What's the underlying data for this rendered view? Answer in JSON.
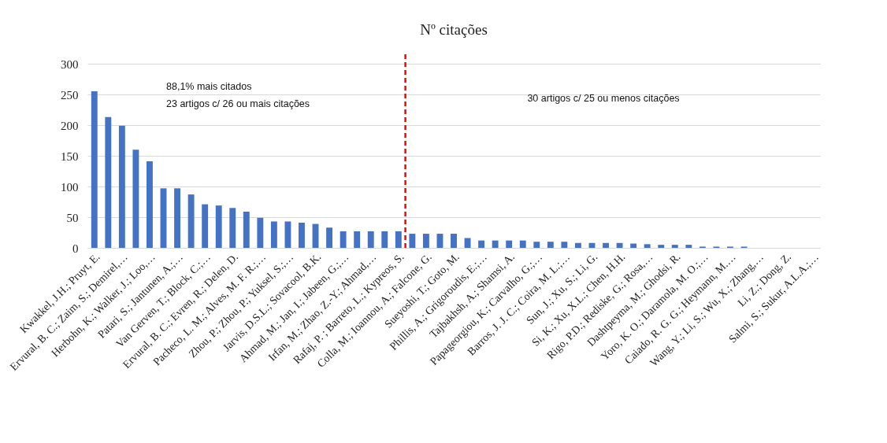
{
  "chart_data": {
    "type": "bar",
    "title": "Nº citações",
    "categories": [
      "Kwakkel, J.H.; Pruyt, E.",
      null,
      "Ervural, B. C.; Zaim, S.; Demirel,…",
      null,
      "Herbohn, K.; Walker, J.; Loo,…",
      null,
      "Patari, S.; Jantunen, A.;…",
      null,
      "Van Gerven, T.; Block, C.;…",
      null,
      "Ervural, B. C.; Evren, R.; Delen, D.",
      null,
      "Pacheco, L. M.; Alves, M. F. R.;…",
      null,
      "Zhou, P.; Zhou, P.; Yuksel, S.;…",
      null,
      "Jarvis, D.S.L.; Sovacool, B.K.",
      null,
      "Ahmad, M.; Jan, I.; Jabeen, G.;…",
      null,
      "Irfan, M.; Zhao, Z.-Y.; Ahmad,…",
      null,
      "Rafaj, P. ; Barreto, L.; Kypreos, S.",
      null,
      "Colla, M.; Ioannou, A.; Falcone, G.",
      null,
      "Sueyoshi, T.; Goto, M.",
      null,
      "Phillis, A.; Grigoroudis, E.;…",
      null,
      "Tajbakhsh, A.; Shamsi, A.",
      null,
      "Papageorgiou, K.; Carvalho, G.;…",
      null,
      "Barros, J. J. C.; Coira, M. L.;…",
      null,
      "Sun, J.; Xu, S.; Li, G.",
      null,
      "Si, K.; Xu, X.L.; Chen, H.H.",
      null,
      "Rigo, P.D.; Rediske, G.; Rosa,…",
      null,
      "Dashtpeyma, M.; Ghodsi, R.",
      null,
      "Yoro, K. O.; Daramola, M. O.;…",
      null,
      "Caiado, R. G. G.; Heymann, M.…",
      null,
      "Wang, Y.; Li, S.; Wu, X.; Zhang,…",
      null,
      "Li, Z.; Dong, Z.",
      null,
      "Salmi, S.; Sukur, A.L.A.;…"
    ],
    "values": [
      255,
      213,
      199,
      160,
      141,
      97,
      97,
      87,
      71,
      69,
      65,
      59,
      49,
      43,
      43,
      41,
      39,
      33,
      27,
      27,
      27,
      27,
      27,
      23,
      23,
      23,
      23,
      16,
      12,
      12,
      12,
      12,
      10,
      10,
      10,
      8,
      8,
      8,
      8,
      7,
      6,
      5,
      5,
      5,
      2,
      2,
      2,
      2,
      0,
      0,
      0,
      0,
      0
    ],
    "color": "#4472c4",
    "ylim": [
      0,
      300
    ],
    "yticks": [
      0,
      50,
      100,
      150,
      200,
      250,
      300
    ],
    "grid": "y",
    "ref_lines": [
      {
        "axis": "x",
        "value": "Rafaj, P. ; Barreto, L.; Kypreos, S.",
        "color": "#ff0000",
        "line_style": "dashed"
      }
    ],
    "annotations": [
      "88,1% mais citados",
      "23 artigos c/ 26 ou mais citações",
      "30 artigos c/ 25 ou menos citações"
    ]
  }
}
